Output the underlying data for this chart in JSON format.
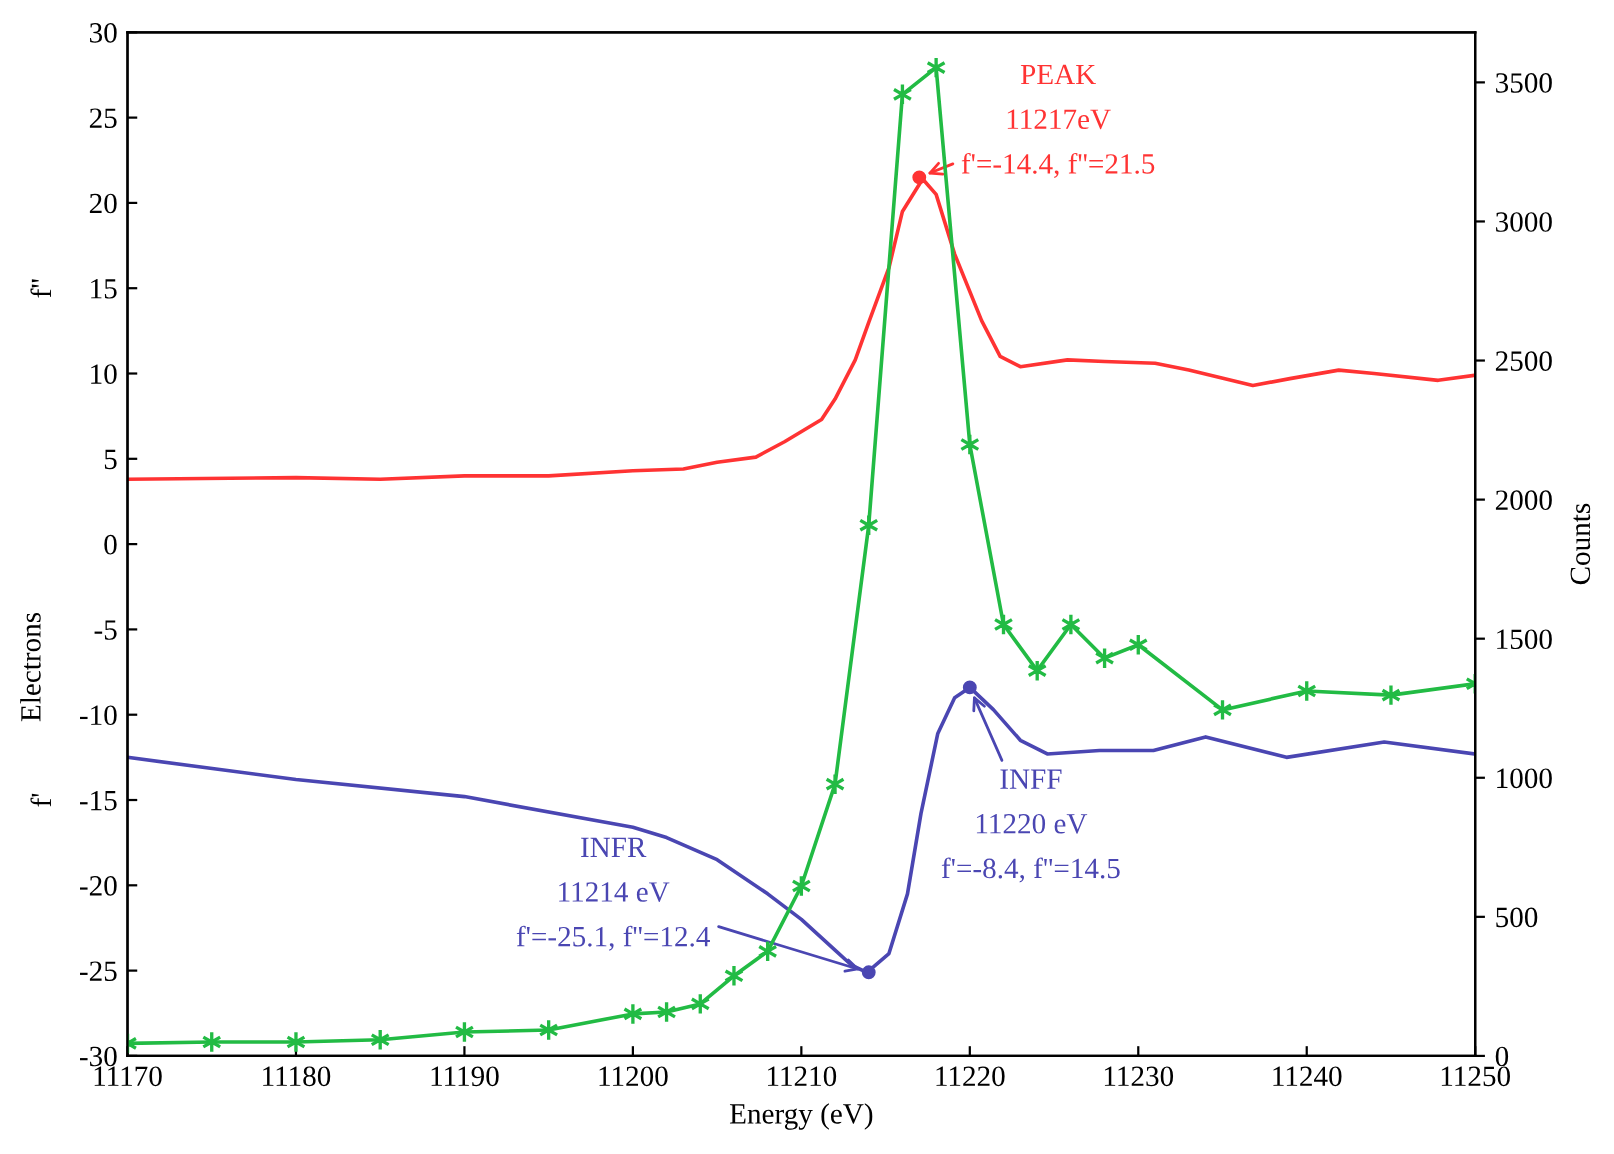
{
  "chart_data": {
    "type": "line",
    "xlabel": "Energy (eV)",
    "ylabel": "Electrons",
    "y2label": "Counts",
    "xlim": [
      11170,
      11250
    ],
    "xticks": [
      11170,
      11180,
      11190,
      11200,
      11210,
      11220,
      11230,
      11240,
      11250
    ],
    "ylim": [
      -30,
      30
    ],
    "yticks": [
      -30,
      -25,
      -20,
      -15,
      -10,
      -5,
      0,
      5,
      10,
      15,
      20,
      25,
      30
    ],
    "y2lim": [
      0,
      3680
    ],
    "y2ticks": [
      0,
      500,
      1000,
      1500,
      2000,
      2500,
      3000,
      3500
    ],
    "grid": false,
    "series": [
      {
        "color": "#ff3333",
        "marker": "none",
        "x": [
          11170,
          11180,
          11185,
          11190,
          11195,
          11200,
          11203,
          11205,
          11207.3,
          11209,
          11211.2,
          11212,
          11213.2,
          11214,
          11215.2,
          11216,
          11217.2,
          11218,
          11219.1,
          11220.7,
          11221.8,
          11223,
          11225.8,
          11228,
          11231,
          11233,
          11236.8,
          11239,
          11241.9,
          11244,
          11247.8,
          11250
        ],
        "values": [
          3.8,
          3.9,
          3.8,
          4.0,
          4.0,
          4.3,
          4.4,
          4.8,
          5.1,
          6.0,
          7.3,
          8.5,
          10.8,
          13,
          16.2,
          19.5,
          21.4,
          20.5,
          17.0,
          13.1,
          11.0,
          10.4,
          10.8,
          10.7,
          10.6,
          10.2,
          9.3,
          9.7,
          10.2,
          10.0,
          9.6,
          9.9
        ]
      },
      {
        "color": "#4a46b2",
        "marker": "none",
        "x": [
          11170,
          11180,
          11190,
          11200,
          11202,
          11205,
          11208,
          11210,
          11212,
          11213,
          11213.9,
          11215.2,
          11216.3,
          11217.1,
          11218.1,
          11219.1,
          11220,
          11221.4,
          11223,
          11224.6,
          11227.7,
          11230.9,
          11234,
          11238.8,
          11244.6,
          11250
        ],
        "values": [
          -12.5,
          -13.8,
          -14.8,
          -16.6,
          -17.2,
          -18.5,
          -20.5,
          -22.0,
          -23.8,
          -24.7,
          -25.1,
          -24.0,
          -20.5,
          -15.8,
          -11.1,
          -9.0,
          -8.4,
          -9.7,
          -11.5,
          -12.3,
          -12.1,
          -12.1,
          -11.3,
          -12.5,
          -11.6,
          -12.3
        ]
      },
      {
        "color": "#22bb44",
        "marker": "cross",
        "axis": "y2",
        "x": [
          11170,
          11175,
          11180,
          11185,
          11190,
          11195,
          11200,
          11202,
          11204,
          11206,
          11208,
          11210,
          11212,
          11214,
          11216,
          11218,
          11220,
          11222,
          11224,
          11226,
          11228,
          11230,
          11235,
          11240,
          11245,
          11250
        ],
        "values": [
          45,
          50,
          50,
          58,
          86,
          93,
          151,
          158,
          187,
          288,
          376,
          611,
          977,
          1908,
          3457,
          3553,
          2198,
          1551,
          1385,
          1551,
          1430,
          1478,
          1244,
          1312,
          1297,
          1338
        ]
      }
    ],
    "annotations": [
      "f''",
      "f'",
      {
        "text": "PEAK\n11217eV\nf'=-14.4, f''=21.5",
        "x": 11217,
        "y": 21.5
      },
      {
        "text": "INFR\n11214 eV\nf'=-25.1, f''=12.4",
        "x": 11214,
        "y": -25.1
      },
      {
        "text": "INFF\n11220 eV\nf'=-8.4, f''=14.5",
        "x": 11220,
        "y": -8.4
      }
    ]
  }
}
